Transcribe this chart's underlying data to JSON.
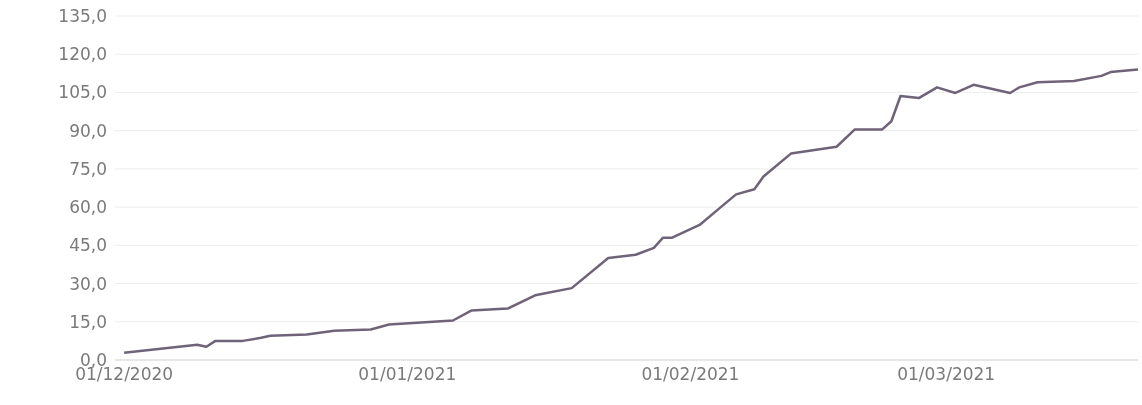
{
  "chart_data": {
    "type": "line",
    "x": [
      "2020-12-01",
      "2020-12-07",
      "2020-12-09",
      "2020-12-10",
      "2020-12-11",
      "2020-12-14",
      "2020-12-16",
      "2020-12-17",
      "2020-12-21",
      "2020-12-24",
      "2020-12-28",
      "2020-12-30",
      "2021-01-06",
      "2021-01-08",
      "2021-01-12",
      "2021-01-15",
      "2021-01-19",
      "2021-01-23",
      "2021-01-26",
      "2021-01-28",
      "2021-01-29",
      "2021-01-30",
      "2021-02-02",
      "2021-02-04",
      "2021-02-06",
      "2021-02-08",
      "2021-02-09",
      "2021-02-12",
      "2021-02-17",
      "2021-02-19",
      "2021-02-22",
      "2021-02-23",
      "2021-02-24",
      "2021-02-26",
      "2021-02-28",
      "2021-03-02",
      "2021-03-04",
      "2021-03-08",
      "2021-03-09",
      "2021-03-11",
      "2021-03-15",
      "2021-03-18",
      "2021-03-19",
      "2021-03-22"
    ],
    "series": [
      {
        "color": "#6e6378",
        "values": [
          2.8,
          5.2,
          6.0,
          5.2,
          7.5,
          7.5,
          8.7,
          9.5,
          10.0,
          11.5,
          12.0,
          13.9,
          15.5,
          19.4,
          20.2,
          25.4,
          28.2,
          40.0,
          41.3,
          44.0,
          48.0,
          48.0,
          53.0,
          59.0,
          65.0,
          67.0,
          72.0,
          81.0,
          83.7,
          90.5,
          90.5,
          93.7,
          103.6,
          102.8,
          107.0,
          104.8,
          108.0,
          104.8,
          107.0,
          109.0,
          109.5,
          111.5,
          113.0,
          114.0
        ]
      }
    ],
    "xlim": [
      "2020-11-30",
      "2021-03-22"
    ],
    "xticks": [
      {
        "value": "2020-12-01",
        "label": "01/12/2020"
      },
      {
        "value": "2021-01-01",
        "label": "01/01/2021"
      },
      {
        "value": "2021-02-01",
        "label": "01/02/2021"
      },
      {
        "value": "2021-03-01",
        "label": "01/03/2021"
      }
    ],
    "ylim": [
      0,
      135
    ],
    "yticks": [
      {
        "value": 0,
        "label": "0,0"
      },
      {
        "value": 15,
        "label": "15,0"
      },
      {
        "value": 30,
        "label": "30,0"
      },
      {
        "value": 45,
        "label": "45,0"
      },
      {
        "value": 60,
        "label": "60,0"
      },
      {
        "value": 75,
        "label": "75,0"
      },
      {
        "value": 90,
        "label": "90,0"
      },
      {
        "value": 105,
        "label": "105,0"
      },
      {
        "value": 120,
        "label": "120,0"
      },
      {
        "value": 135,
        "label": "135,0"
      }
    ],
    "grid": "y",
    "marker": "none",
    "line_style": "solid"
  }
}
